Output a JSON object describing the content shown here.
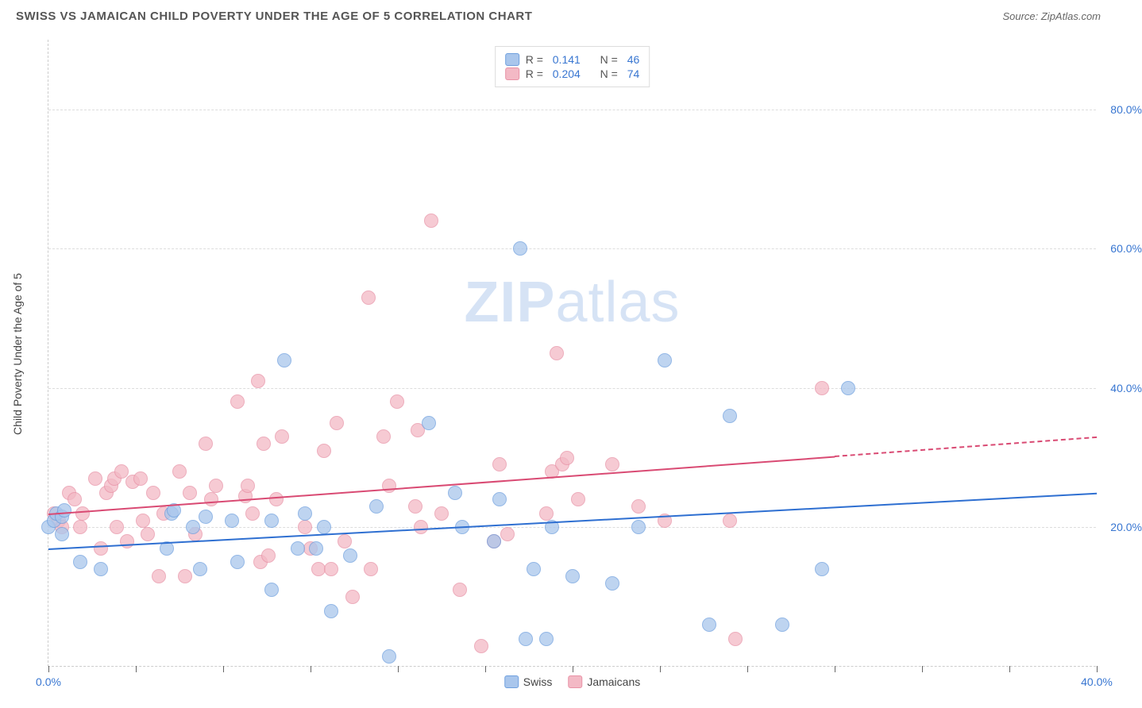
{
  "header": {
    "title": "SWISS VS JAMAICAN CHILD POVERTY UNDER THE AGE OF 5 CORRELATION CHART",
    "source": "Source: ZipAtlas.com"
  },
  "watermark": {
    "prefix": "ZIP",
    "suffix": "atlas"
  },
  "chart": {
    "type": "scatter",
    "y_axis_title": "Child Poverty Under the Age of 5",
    "xlim": [
      0,
      40
    ],
    "ylim": [
      0,
      90
    ],
    "x_ticks_marks": [
      0,
      3.33,
      6.67,
      10,
      13.33,
      16.67,
      20,
      23.33,
      26.67,
      30,
      33.33,
      36.67,
      40
    ],
    "x_tick_labels": [
      {
        "pos": 0,
        "label": "0.0%"
      },
      {
        "pos": 40,
        "label": "40.0%"
      }
    ],
    "y_tick_labels": [
      {
        "pos": 20,
        "label": "20.0%"
      },
      {
        "pos": 40,
        "label": "40.0%"
      },
      {
        "pos": 60,
        "label": "60.0%"
      },
      {
        "pos": 80,
        "label": "80.0%"
      }
    ],
    "y_gridlines": [
      20,
      40,
      60,
      80
    ],
    "background_color": "#ffffff",
    "grid_color": "#dddddd",
    "axis_label_color": "#3876d1",
    "series": [
      {
        "name": "Swiss",
        "color_fill": "#a9c6ec",
        "color_stroke": "#6fa0de",
        "marker_radius": 9,
        "marker_opacity": 0.75,
        "correlation_r": "0.141",
        "correlation_n": "46",
        "trend": {
          "x0": 0,
          "y0": 17,
          "x1": 40,
          "y1": 25,
          "color": "#2e6fd1",
          "solid_until_x": 40
        },
        "points": [
          [
            0,
            20
          ],
          [
            0.2,
            21
          ],
          [
            0.3,
            22
          ],
          [
            0.5,
            19
          ],
          [
            0.5,
            21.5
          ],
          [
            0.6,
            22.5
          ],
          [
            1.2,
            15
          ],
          [
            2,
            14
          ],
          [
            4.5,
            17
          ],
          [
            4.7,
            22
          ],
          [
            4.8,
            22.5
          ],
          [
            5.5,
            20
          ],
          [
            5.8,
            14
          ],
          [
            6,
            21.5
          ],
          [
            7,
            21
          ],
          [
            7.2,
            15
          ],
          [
            8.5,
            21
          ],
          [
            8.5,
            11
          ],
          [
            9,
            44
          ],
          [
            9.5,
            17
          ],
          [
            9.8,
            22
          ],
          [
            10.2,
            17
          ],
          [
            10.5,
            20
          ],
          [
            10.8,
            8
          ],
          [
            11.5,
            16
          ],
          [
            12.5,
            23
          ],
          [
            13,
            1.5
          ],
          [
            14.5,
            35
          ],
          [
            15.5,
            25
          ],
          [
            15.8,
            20
          ],
          [
            17,
            18
          ],
          [
            17.2,
            24
          ],
          [
            18,
            60
          ],
          [
            18.2,
            4
          ],
          [
            18.5,
            14
          ],
          [
            19,
            4
          ],
          [
            19.2,
            20
          ],
          [
            20,
            13
          ],
          [
            21.5,
            12
          ],
          [
            22.5,
            20
          ],
          [
            23.5,
            44
          ],
          [
            25.2,
            6
          ],
          [
            26,
            36
          ],
          [
            28,
            6
          ],
          [
            29.5,
            14
          ],
          [
            30.5,
            40
          ]
        ]
      },
      {
        "name": "Jamaicans",
        "color_fill": "#f3b9c5",
        "color_stroke": "#e892a6",
        "marker_radius": 9,
        "marker_opacity": 0.75,
        "correlation_r": "0.204",
        "correlation_n": "74",
        "trend": {
          "x0": 0,
          "y0": 22,
          "x1": 40,
          "y1": 33,
          "color": "#d94a73",
          "solid_until_x": 30
        },
        "points": [
          [
            0.2,
            22
          ],
          [
            0.4,
            21
          ],
          [
            0.5,
            20
          ],
          [
            0.8,
            25
          ],
          [
            1,
            24
          ],
          [
            1.2,
            20
          ],
          [
            1.3,
            22
          ],
          [
            1.8,
            27
          ],
          [
            2,
            17
          ],
          [
            2.2,
            25
          ],
          [
            2.4,
            26
          ],
          [
            2.5,
            27
          ],
          [
            2.6,
            20
          ],
          [
            2.8,
            28
          ],
          [
            3,
            18
          ],
          [
            3.2,
            26.5
          ],
          [
            3.5,
            27
          ],
          [
            3.6,
            21
          ],
          [
            3.8,
            19
          ],
          [
            4,
            25
          ],
          [
            4.2,
            13
          ],
          [
            4.4,
            22
          ],
          [
            5,
            28
          ],
          [
            5.2,
            13
          ],
          [
            5.4,
            25
          ],
          [
            5.6,
            19
          ],
          [
            6,
            32
          ],
          [
            6.2,
            24
          ],
          [
            6.4,
            26
          ],
          [
            7.2,
            38
          ],
          [
            7.5,
            24.5
          ],
          [
            7.6,
            26
          ],
          [
            7.8,
            22
          ],
          [
            8,
            41
          ],
          [
            8.1,
            15
          ],
          [
            8.2,
            32
          ],
          [
            8.4,
            16
          ],
          [
            8.7,
            24
          ],
          [
            8.9,
            33
          ],
          [
            9.8,
            20
          ],
          [
            10,
            17
          ],
          [
            10.3,
            14
          ],
          [
            10.5,
            31
          ],
          [
            10.8,
            14
          ],
          [
            11,
            35
          ],
          [
            11.3,
            18
          ],
          [
            11.6,
            10
          ],
          [
            12.2,
            53
          ],
          [
            12.3,
            14
          ],
          [
            12.8,
            33
          ],
          [
            13,
            26
          ],
          [
            13.3,
            38
          ],
          [
            14,
            23
          ],
          [
            14.1,
            34
          ],
          [
            14.2,
            20
          ],
          [
            14.6,
            64
          ],
          [
            15,
            22
          ],
          [
            15.7,
            11
          ],
          [
            16.5,
            3
          ],
          [
            17,
            18
          ],
          [
            17.2,
            29
          ],
          [
            17.5,
            19
          ],
          [
            19,
            22
          ],
          [
            19.2,
            28
          ],
          [
            19.4,
            45
          ],
          [
            19.6,
            29
          ],
          [
            19.8,
            30
          ],
          [
            20.2,
            24
          ],
          [
            22.5,
            23
          ],
          [
            21.5,
            29
          ],
          [
            23.5,
            21
          ],
          [
            26,
            21
          ],
          [
            26.2,
            4
          ],
          [
            29.5,
            40
          ]
        ]
      }
    ]
  }
}
